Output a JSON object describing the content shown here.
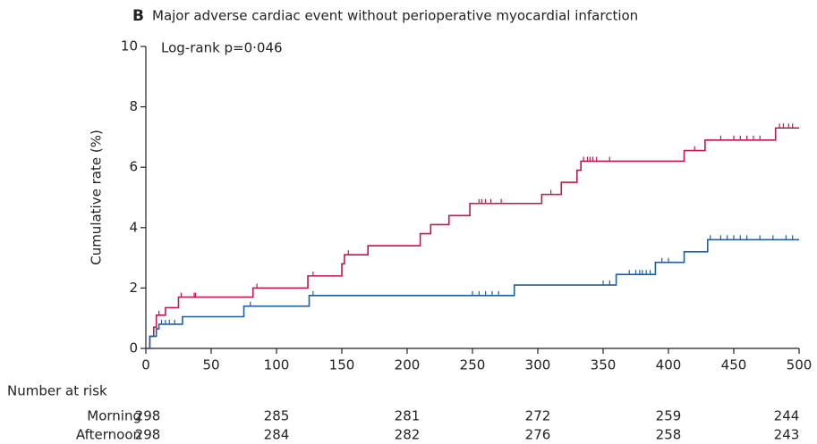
{
  "chart_data": {
    "type": "step",
    "panel": "B",
    "title": "Major adverse cardiac event without perioperative myocardial infarction",
    "annotation": "Log-rank p=0·046",
    "y_label": "Cumulative rate (%)",
    "xlim": [
      0,
      500
    ],
    "xticks": [
      0,
      50,
      100,
      150,
      200,
      250,
      300,
      350,
      400,
      450,
      500
    ],
    "ylim": [
      0,
      10
    ],
    "yticks": [
      0,
      2,
      4,
      6,
      8,
      10
    ],
    "risk_title": "Number at risk",
    "risk_times": [
      0,
      100,
      200,
      300,
      400,
      500
    ],
    "series": [
      {
        "name": "Morning",
        "color": "#c0184a",
        "x": [
          0,
          3,
          6,
          8,
          15,
          25,
          82,
          124,
          150,
          152,
          170,
          210,
          218,
          232,
          248,
          303,
          318,
          330,
          333,
          412,
          428,
          482,
          500
        ],
        "values": [
          0,
          0.4,
          0.7,
          1.1,
          1.35,
          1.7,
          2.0,
          2.4,
          2.8,
          3.1,
          3.4,
          3.8,
          4.1,
          4.4,
          4.8,
          5.1,
          5.5,
          5.9,
          6.2,
          6.55,
          6.9,
          7.3,
          7.3
        ],
        "censored": [
          10,
          27,
          37,
          38,
          85,
          128,
          155,
          255,
          257,
          260,
          264,
          272,
          310,
          335,
          338,
          340,
          342,
          345,
          355,
          420,
          440,
          450,
          455,
          460,
          465,
          470,
          485,
          488,
          492,
          495
        ],
        "at_risk": [
          298,
          285,
          281,
          272,
          259,
          244
        ]
      },
      {
        "name": "Afternoon",
        "color": "#1f5fa0",
        "x": [
          0,
          3,
          8,
          10,
          28,
          75,
          125,
          282,
          360,
          390,
          412,
          430,
          500
        ],
        "values": [
          0,
          0.4,
          0.65,
          0.8,
          1.05,
          1.4,
          1.75,
          2.1,
          2.45,
          2.85,
          3.2,
          3.6,
          3.6
        ],
        "censored": [
          12,
          15,
          18,
          22,
          80,
          128,
          250,
          255,
          260,
          265,
          270,
          350,
          355,
          370,
          375,
          378,
          380,
          383,
          386,
          395,
          400,
          432,
          440,
          445,
          450,
          455,
          460,
          470,
          480,
          490,
          495
        ],
        "at_risk": [
          298,
          284,
          282,
          276,
          258,
          243
        ]
      }
    ]
  }
}
